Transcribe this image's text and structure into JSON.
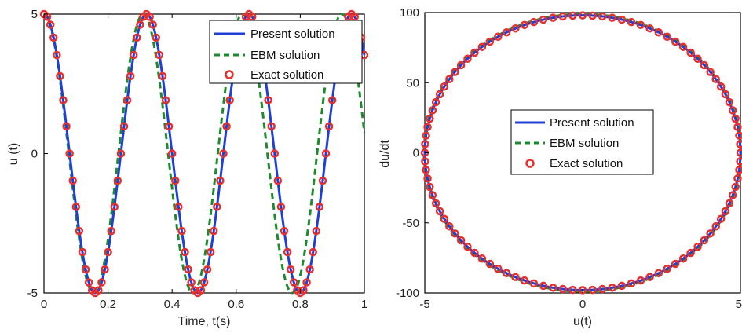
{
  "chart_data": [
    {
      "type": "line",
      "xlabel": "Time, t(s)",
      "ylabel": "u (t)",
      "xlim": [
        0,
        1
      ],
      "ylim": [
        -5,
        5
      ],
      "xticks": [
        "0",
        "0.2",
        "0.4",
        "0.6",
        "0.8",
        "1"
      ],
      "yticks": [
        "-5",
        "0",
        "5"
      ],
      "legend_position": "top-right",
      "series": [
        {
          "name": "Present solution",
          "style": "solid",
          "color": "#1f3fd6",
          "amplitude": 5,
          "period": 0.32
        },
        {
          "name": "EBM solution",
          "style": "dashed",
          "color": "#1e8a2e",
          "amplitude": 5,
          "period": 0.31
        },
        {
          "name": "Exact solution",
          "style": "circle-markers",
          "color": "#e53030",
          "amplitude": 5,
          "period": 0.32
        }
      ],
      "extrema": [
        {
          "t": 0.0,
          "u": 5
        },
        {
          "t": 0.16,
          "u": -5
        },
        {
          "t": 0.32,
          "u": 5
        },
        {
          "t": 0.48,
          "u": -5
        },
        {
          "t": 0.64,
          "u": 5
        },
        {
          "t": 0.8,
          "u": -5
        },
        {
          "t": 0.96,
          "u": 5
        }
      ]
    },
    {
      "type": "line",
      "xlabel": "u(t)",
      "ylabel": "du/dt",
      "xlim": [
        -5,
        5
      ],
      "ylim": [
        -100,
        100
      ],
      "xticks": [
        "-5",
        "0",
        "5"
      ],
      "yticks": [
        "-100",
        "-50",
        "0",
        "50",
        "100"
      ],
      "legend_position": "center",
      "series": [
        {
          "name": "Present solution",
          "style": "solid",
          "color": "#1f3fd6",
          "u_amplitude": 5,
          "du_amplitude": 98
        },
        {
          "name": "EBM solution",
          "style": "dashed",
          "color": "#1e8a2e",
          "u_amplitude": 5,
          "du_amplitude": 98
        },
        {
          "name": "Exact solution",
          "style": "circle-markers",
          "color": "#e53030",
          "u_amplitude": 5,
          "du_amplitude": 98
        }
      ]
    }
  ]
}
